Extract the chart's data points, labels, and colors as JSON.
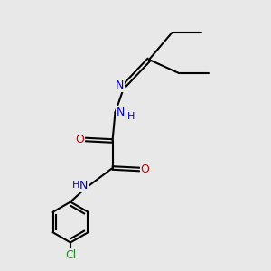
{
  "bg_color": "#e8e8e8",
  "line_color": "#000000",
  "N_color": "#0000cc",
  "O_color": "#cc0000",
  "Cl_color": "#228822",
  "bond_lw": 1.5,
  "font_size": 9,
  "fig_size": [
    3.0,
    3.0
  ],
  "dpi": 100,
  "xlim": [
    0,
    10
  ],
  "ylim": [
    0,
    10
  ]
}
